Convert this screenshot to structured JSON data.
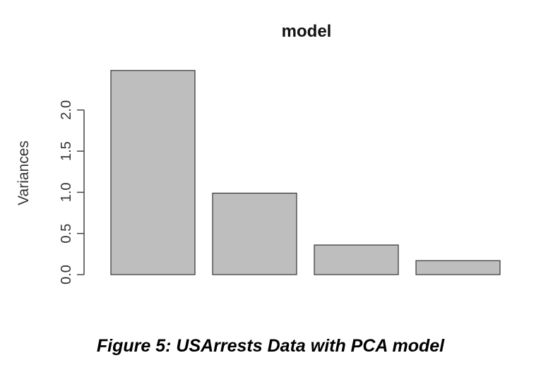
{
  "chart_data": {
    "type": "bar",
    "title": "model",
    "xlabel": "",
    "ylabel": "Variances",
    "categories": [
      "",
      "",
      "",
      ""
    ],
    "values": [
      2.48,
      0.99,
      0.36,
      0.17
    ],
    "ylim": [
      0,
      2.5
    ],
    "yticks": [
      "0.0",
      "0.5",
      "1.0",
      "1.5",
      "2.0"
    ],
    "grid": false,
    "legend": "none",
    "bar_color": "#bebebe",
    "bar_edge_color": "#333333"
  },
  "caption": "Figure 5: USArrests Data with PCA model"
}
